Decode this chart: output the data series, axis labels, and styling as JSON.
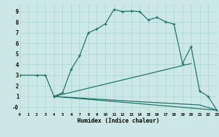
{
  "xlabel": "Humidex (Indice chaleur)",
  "background_color": "#cce8e6",
  "grid_color": "#aad4d0",
  "line_color": "#1a7068",
  "xlim": [
    0,
    23
  ],
  "ylim": [
    -0.5,
    9.7
  ],
  "xticks": [
    0,
    1,
    2,
    3,
    4,
    5,
    6,
    7,
    8,
    9,
    10,
    11,
    12,
    13,
    14,
    15,
    16,
    17,
    18,
    19,
    20,
    21,
    22,
    23
  ],
  "yticks": [
    0,
    1,
    2,
    3,
    4,
    5,
    6,
    7,
    8,
    9
  ],
  "ytick_labels": [
    "-0",
    "1",
    "2",
    "3",
    "4",
    "5",
    "6",
    "7",
    "8",
    "9"
  ],
  "main_x": [
    0,
    2,
    3,
    4,
    5,
    6,
    7,
    8,
    9,
    10,
    11,
    12,
    13,
    14,
    15,
    16,
    17,
    18,
    19,
    20,
    21,
    22,
    23
  ],
  "main_y": [
    3.0,
    3.0,
    3.0,
    1.0,
    1.35,
    3.55,
    4.85,
    7.0,
    7.35,
    7.85,
    9.2,
    9.0,
    9.05,
    9.0,
    8.2,
    8.45,
    8.05,
    7.8,
    4.1,
    5.7,
    1.5,
    1.0,
    -0.3
  ],
  "line1_x": [
    4,
    23
  ],
  "line1_y": [
    1.0,
    -0.3
  ],
  "line2_x": [
    4,
    20
  ],
  "line2_y": [
    1.0,
    4.1
  ],
  "line3_x": [
    4,
    14,
    21,
    23
  ],
  "line3_y": [
    1.0,
    0.5,
    0.2,
    -0.3
  ]
}
